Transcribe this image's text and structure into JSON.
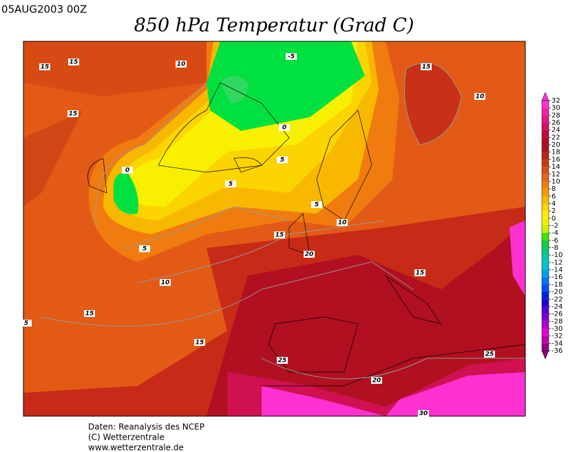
{
  "header": {
    "run": "05AUG2003 00Z",
    "title": "850 hPa Temperatur (Grad C)"
  },
  "map": {
    "contour_labels": [
      15,
      15,
      10,
      15,
      -5,
      0,
      0,
      5,
      5,
      5,
      10,
      15,
      5,
      20,
      10,
      15,
      15,
      15,
      25,
      20,
      25,
      30,
      15,
      10,
      5
    ]
  },
  "colorbar": {
    "ticks": [
      32,
      30,
      28,
      26,
      24,
      22,
      20,
      18,
      16,
      14,
      12,
      10,
      8,
      6,
      4,
      2,
      0,
      -2,
      -4,
      -6,
      -8,
      -10,
      -12,
      -14,
      -16,
      -18,
      -20,
      -22,
      -24,
      -26,
      -28,
      -30,
      -32,
      -34,
      -36
    ],
    "colors": [
      "#ff30d0",
      "#f020a8",
      "#e01888",
      "#d01060",
      "#c00a40",
      "#b00a28",
      "#a81020",
      "#b82818",
      "#c83c14",
      "#d85014",
      "#e66418",
      "#f07c10",
      "#f49a00",
      "#f8b800",
      "#fcd400",
      "#ffee00",
      "#f0f000",
      "#c8f000",
      "#40e000",
      "#10d040",
      "#00c878",
      "#00c8b0",
      "#00c0d8",
      "#00a0e8",
      "#0078f0",
      "#0050f0",
      "#0020e0",
      "#2000d0",
      "#5000d0",
      "#8000d0",
      "#b000d0",
      "#e000d0",
      "#c000b0",
      "#900080"
    ]
  },
  "footer": {
    "lines": [
      "Daten: Reanalysis des NCEP",
      "(C) Wetterzentrale",
      "www.wetterzentrale.de"
    ]
  }
}
